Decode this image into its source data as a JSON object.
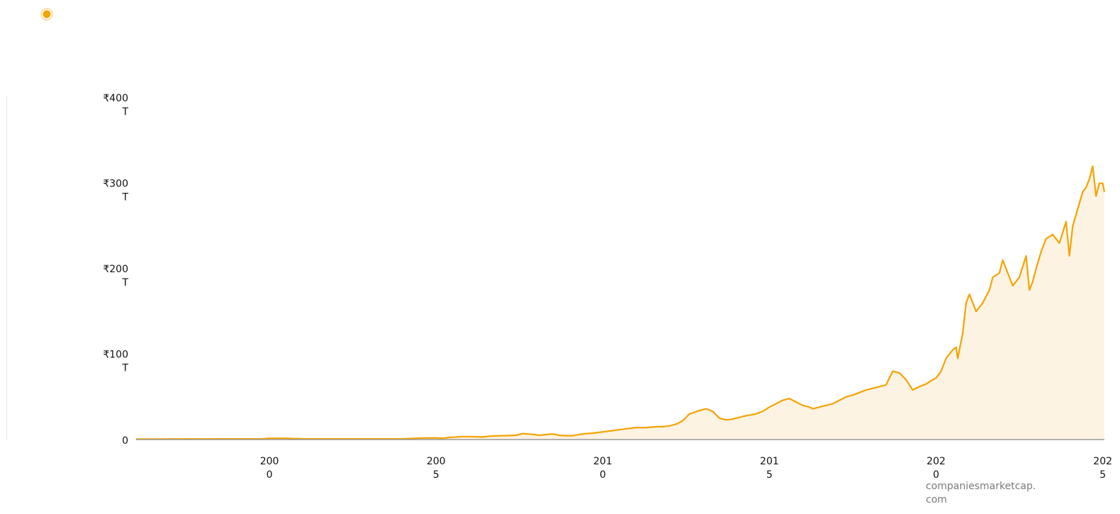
{
  "colors": {
    "line": "#f5a300",
    "area": "#fdf3e3",
    "axis": "#999999"
  },
  "legend": {
    "icon": "orange-dot-icon"
  },
  "credit": {
    "line1": "companiesmarketcap.",
    "line2": "com"
  },
  "chart_data": {
    "type": "area",
    "xlim": [
      1996,
      2025.05
    ],
    "ylim": [
      0,
      400
    ],
    "grid": false,
    "y_ticks": [
      {
        "value": 0,
        "line1": "0",
        "line2": ""
      },
      {
        "value": 100,
        "line1": "₹100",
        "line2": "T"
      },
      {
        "value": 200,
        "line1": "₹200",
        "line2": "T"
      },
      {
        "value": 300,
        "line1": "₹300",
        "line2": "T"
      },
      {
        "value": 400,
        "line1": "₹400",
        "line2": "T"
      }
    ],
    "x_ticks": [
      {
        "value": 2000,
        "line1": "200",
        "line2": "0"
      },
      {
        "value": 2005,
        "line1": "200",
        "line2": "5"
      },
      {
        "value": 2010,
        "line1": "201",
        "line2": "0"
      },
      {
        "value": 2015,
        "line1": "201",
        "line2": "5"
      },
      {
        "value": 2020,
        "line1": "202",
        "line2": "0"
      },
      {
        "value": 2025,
        "line1": "202",
        "line2": "5"
      }
    ],
    "x": [
      1996,
      1999.8,
      2000,
      2000.5,
      2000.7,
      2001,
      2004,
      2004.2,
      2004.6,
      2005,
      2005.2,
      2005.4,
      2005.6,
      2005.8,
      2006,
      2006.4,
      2006.6,
      2006.8,
      2007,
      2007.4,
      2007.6,
      2007.9,
      2008.1,
      2008.3,
      2008.5,
      2008.7,
      2008.9,
      2009.1,
      2009.3,
      2009.5,
      2009.7,
      2010,
      2010.2,
      2010.4,
      2010.6,
      2010.8,
      2011,
      2011.3,
      2011.6,
      2011.8,
      2012,
      2012.2,
      2012.4,
      2012.6,
      2012.9,
      2013.1,
      2013.3,
      2013.5,
      2013.7,
      2013.9,
      2014.1,
      2014.3,
      2014.6,
      2014.8,
      2015,
      2015.2,
      2015.4,
      2015.6,
      2015.8,
      2016,
      2016.2,
      2016.3,
      2016.5,
      2016.7,
      2016.9,
      2017.1,
      2017.3,
      2017.5,
      2017.7,
      2017.9,
      2018.1,
      2018.3,
      2018.5,
      2018.7,
      2018.9,
      2019.1,
      2019.3,
      2019.5,
      2019.7,
      2019.9,
      2020,
      2020.15,
      2020.3,
      2020.5,
      2020.6,
      2020.65,
      2020.8,
      2020.9,
      2021,
      2021.2,
      2021.4,
      2021.6,
      2021.7,
      2021.9,
      2022,
      2022.1,
      2022.3,
      2022.5,
      2022.7,
      2022.8,
      2022.9,
      2023,
      2023.15,
      2023.3,
      2023.5,
      2023.7,
      2023.9,
      2024,
      2024.1,
      2024.25,
      2024.4,
      2024.5,
      2024.6,
      2024.7,
      2024.8,
      2024.9,
      2025,
      2025.05
    ],
    "y": [
      0.5,
      0.8,
      1.5,
      1.5,
      1.2,
      0.8,
      0.8,
      1.2,
      1.8,
      2,
      1.5,
      2.5,
      3,
      3.5,
      3.5,
      3,
      4,
      4.2,
      4.5,
      5,
      7,
      6,
      5,
      6,
      6.5,
      5,
      4.5,
      4.5,
      6,
      7,
      7.5,
      9,
      10,
      11,
      12,
      13,
      14,
      14,
      15,
      15,
      16,
      18,
      22,
      30,
      34,
      36,
      33,
      25,
      23,
      24,
      26,
      28,
      30,
      33,
      38,
      42,
      46,
      48,
      44,
      40,
      38,
      36,
      38,
      40,
      42,
      46,
      50,
      52,
      55,
      58,
      60,
      62,
      64,
      80,
      78,
      70,
      58,
      62,
      65,
      70,
      72,
      80,
      95,
      105,
      108,
      95,
      125,
      160,
      170,
      150,
      160,
      175,
      190,
      195,
      210,
      200,
      180,
      190,
      215,
      175,
      185,
      200,
      220,
      235,
      240,
      230,
      255,
      215,
      250,
      270,
      290,
      295,
      305,
      320,
      285,
      300,
      300,
      290
    ]
  }
}
